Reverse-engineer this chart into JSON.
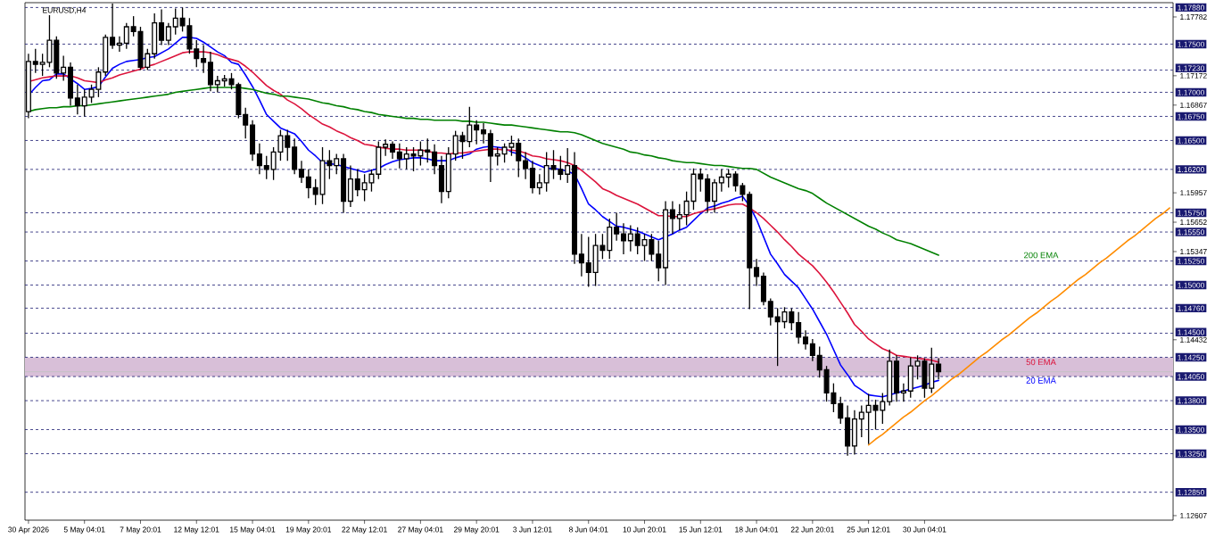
{
  "chart_data": {
    "type": "candlestick",
    "title": "EURUSD,H4",
    "color": "#000000",
    "categories": [
      "30 Apr 2026",
      null,
      null,
      null,
      null,
      null,
      null,
      null,
      "5 May 04:01",
      null,
      null,
      null,
      null,
      null,
      null,
      null,
      "7 May 20:01",
      null,
      null,
      null,
      null,
      null,
      null,
      null,
      "12 May 12:01",
      null,
      null,
      null,
      null,
      null,
      null,
      null,
      "15 May 04:01",
      null,
      null,
      null,
      null,
      null,
      null,
      null,
      "19 May 20:01",
      null,
      null,
      null,
      null,
      null,
      null,
      null,
      "22 May 12:01",
      null,
      null,
      null,
      null,
      null,
      null,
      null,
      "27 May 04:01",
      null,
      null,
      null,
      null,
      null,
      null,
      null,
      "29 May 20:01",
      null,
      null,
      null,
      null,
      null,
      null,
      null,
      "3 Jun 12:01",
      null,
      null,
      null,
      null,
      null,
      null,
      null,
      "8 Jun 04:01",
      null,
      null,
      null,
      null,
      null,
      null,
      null,
      "10 Jun 20:01",
      null,
      null,
      null,
      null,
      null,
      null,
      null,
      "15 Jun 12:01",
      null,
      null,
      null,
      null,
      null,
      null,
      null,
      "18 Jun 04:01",
      null,
      null,
      null,
      null,
      null,
      null,
      null,
      "22 Jun 20:01",
      null,
      null,
      null,
      null,
      null,
      null,
      null,
      "25 Jun 12:01",
      null,
      null,
      null,
      null,
      null,
      null,
      null,
      "30 Jun 04:01",
      null,
      null,
      null,
      null,
      null,
      null,
      null,
      null,
      null,
      null,
      null,
      null,
      null,
      null,
      null,
      null,
      null,
      null,
      null,
      null,
      null,
      null,
      null,
      null,
      null,
      null,
      null,
      null,
      null,
      null,
      null,
      null,
      null,
      null,
      null
    ],
    "ohlc": [
      [
        1.168,
        1.174,
        1.1673,
        1.1732
      ],
      [
        1.1732,
        1.1745,
        1.172,
        1.1729
      ],
      [
        1.1729,
        1.174,
        1.1717,
        1.1731
      ],
      [
        1.1731,
        1.178,
        1.1726,
        1.1754
      ],
      [
        1.1754,
        1.1758,
        1.1714,
        1.172
      ],
      [
        1.172,
        1.1738,
        1.1712,
        1.1726
      ],
      [
        1.1726,
        1.1731,
        1.1686,
        1.1694
      ],
      [
        1.1694,
        1.1708,
        1.1677,
        1.1686
      ],
      [
        1.1686,
        1.1703,
        1.1675,
        1.1695
      ],
      [
        1.1695,
        1.1708,
        1.1689,
        1.1703
      ],
      [
        1.1703,
        1.1726,
        1.1695,
        1.1721
      ],
      [
        1.1721,
        1.176,
        1.1717,
        1.1757
      ],
      [
        1.1757,
        1.1792,
        1.1745,
        1.1749
      ],
      [
        1.1749,
        1.1758,
        1.1742,
        1.1751
      ],
      [
        1.1751,
        1.1772,
        1.1745,
        1.1768
      ],
      [
        1.1768,
        1.1779,
        1.1758,
        1.1763
      ],
      [
        1.1763,
        1.1768,
        1.1723,
        1.1726
      ],
      [
        1.1726,
        1.1745,
        1.1723,
        1.174
      ],
      [
        1.174,
        1.1782,
        1.1735,
        1.1772
      ],
      [
        1.1772,
        1.1786,
        1.1749,
        1.1754
      ],
      [
        1.1754,
        1.1772,
        1.1749,
        1.1768
      ],
      [
        1.1768,
        1.1787,
        1.176,
        1.1777
      ],
      [
        1.1777,
        1.1788,
        1.1763,
        1.1769
      ],
      [
        1.1769,
        1.1777,
        1.174,
        1.1745
      ],
      [
        1.1745,
        1.1754,
        1.1726,
        1.1735
      ],
      [
        1.1735,
        1.1749,
        1.172,
        1.1731
      ],
      [
        1.1731,
        1.1742,
        1.1701,
        1.1708
      ],
      [
        1.1708,
        1.1717,
        1.17,
        1.1712
      ],
      [
        1.1712,
        1.1718,
        1.1706,
        1.1714
      ],
      [
        1.1714,
        1.172,
        1.1703,
        1.1708
      ],
      [
        1.1708,
        1.171,
        1.1673,
        1.1677
      ],
      [
        1.1677,
        1.1684,
        1.1652,
        1.1666
      ],
      [
        1.1666,
        1.1671,
        1.1629,
        1.1636
      ],
      [
        1.1636,
        1.1647,
        1.1615,
        1.1624
      ],
      [
        1.1624,
        1.1634,
        1.161,
        1.162
      ],
      [
        1.162,
        1.1643,
        1.1609,
        1.1638
      ],
      [
        1.1638,
        1.1661,
        1.1629,
        1.1655
      ],
      [
        1.1655,
        1.1661,
        1.1629,
        1.1643
      ],
      [
        1.1643,
        1.1652,
        1.1615,
        1.162
      ],
      [
        1.162,
        1.1629,
        1.1606,
        1.1612
      ],
      [
        1.1612,
        1.162,
        1.159,
        1.1601
      ],
      [
        1.1601,
        1.161,
        1.1583,
        1.1594
      ],
      [
        1.1594,
        1.1643,
        1.1584,
        1.1629
      ],
      [
        1.1629,
        1.164,
        1.161,
        1.1624
      ],
      [
        1.1624,
        1.1636,
        1.1615,
        1.1631
      ],
      [
        1.1631,
        1.1636,
        1.1575,
        1.1587
      ],
      [
        1.1587,
        1.1624,
        1.1581,
        1.161
      ],
      [
        1.161,
        1.162,
        1.1592,
        1.1599
      ],
      [
        1.1599,
        1.1615,
        1.1587,
        1.1606
      ],
      [
        1.1606,
        1.162,
        1.1597,
        1.1615
      ],
      [
        1.1615,
        1.1649,
        1.161,
        1.1643
      ],
      [
        1.1643,
        1.1651,
        1.1634,
        1.1646
      ],
      [
        1.1646,
        1.1649,
        1.1631,
        1.1638
      ],
      [
        1.1638,
        1.1647,
        1.1621,
        1.1631
      ],
      [
        1.1631,
        1.1643,
        1.162,
        1.1636
      ],
      [
        1.1636,
        1.1643,
        1.1618,
        1.1634
      ],
      [
        1.1634,
        1.1649,
        1.1624,
        1.164
      ],
      [
        1.164,
        1.1652,
        1.1627,
        1.1638
      ],
      [
        1.1638,
        1.1646,
        1.1615,
        1.1624
      ],
      [
        1.1624,
        1.1634,
        1.1585,
        1.1597
      ],
      [
        1.1597,
        1.1643,
        1.159,
        1.1636
      ],
      [
        1.1636,
        1.166,
        1.1629,
        1.1655
      ],
      [
        1.1655,
        1.1659,
        1.1631,
        1.1649
      ],
      [
        1.1649,
        1.1685,
        1.1643,
        1.1666
      ],
      [
        1.1666,
        1.1671,
        1.1646,
        1.1661
      ],
      [
        1.1661,
        1.1668,
        1.1647,
        1.1657
      ],
      [
        1.1657,
        1.1661,
        1.1607,
        1.1634
      ],
      [
        1.1634,
        1.1643,
        1.1624,
        1.1636
      ],
      [
        1.1636,
        1.1647,
        1.1627,
        1.1643
      ],
      [
        1.1643,
        1.1655,
        1.1634,
        1.1647
      ],
      [
        1.1647,
        1.1652,
        1.1612,
        1.1629
      ],
      [
        1.1629,
        1.1638,
        1.161,
        1.1621
      ],
      [
        1.1621,
        1.1629,
        1.1595,
        1.1601
      ],
      [
        1.1601,
        1.1615,
        1.1594,
        1.1606
      ],
      [
        1.1606,
        1.1638,
        1.1597,
        1.1624
      ],
      [
        1.1624,
        1.164,
        1.161,
        1.162
      ],
      [
        1.162,
        1.1634,
        1.1609,
        1.1615
      ],
      [
        1.1615,
        1.1642,
        1.1606,
        1.1624
      ],
      [
        1.1624,
        1.1638,
        1.1522,
        1.1532
      ],
      [
        1.1532,
        1.1553,
        1.1509,
        1.1523
      ],
      [
        1.1523,
        1.155,
        1.1498,
        1.1513
      ],
      [
        1.1513,
        1.1553,
        1.1499,
        1.1541
      ],
      [
        1.1541,
        1.1553,
        1.1527,
        1.1536
      ],
      [
        1.1536,
        1.1569,
        1.1527,
        1.156
      ],
      [
        1.156,
        1.1575,
        1.1546,
        1.1553
      ],
      [
        1.1553,
        1.1564,
        1.1532,
        1.1546
      ],
      [
        1.1546,
        1.1562,
        1.1535,
        1.1553
      ],
      [
        1.1553,
        1.156,
        1.1532,
        1.1541
      ],
      [
        1.1541,
        1.1553,
        1.1525,
        1.1547
      ],
      [
        1.1547,
        1.1553,
        1.1525,
        1.1532
      ],
      [
        1.1532,
        1.1546,
        1.1504,
        1.1518
      ],
      [
        1.1518,
        1.1587,
        1.15,
        1.1578
      ],
      [
        1.1578,
        1.1587,
        1.1553,
        1.1569
      ],
      [
        1.1569,
        1.1584,
        1.1557,
        1.1573
      ],
      [
        1.1573,
        1.1597,
        1.1562,
        1.1587
      ],
      [
        1.1587,
        1.1621,
        1.1578,
        1.1615
      ],
      [
        1.1615,
        1.1621,
        1.1597,
        1.161
      ],
      [
        1.161,
        1.1615,
        1.1575,
        1.1587
      ],
      [
        1.1587,
        1.161,
        1.1575,
        1.1606
      ],
      [
        1.1606,
        1.162,
        1.1597,
        1.1612
      ],
      [
        1.1612,
        1.162,
        1.1601,
        1.1615
      ],
      [
        1.1615,
        1.1618,
        1.1597,
        1.1603
      ],
      [
        1.1603,
        1.1606,
        1.1587,
        1.1594
      ],
      [
        1.1594,
        1.1597,
        1.1475,
        1.1518
      ],
      [
        1.1518,
        1.1527,
        1.1499,
        1.1509
      ],
      [
        1.1509,
        1.1513,
        1.1479,
        1.1483
      ],
      [
        1.1483,
        1.1486,
        1.1458,
        1.1467
      ],
      [
        1.1467,
        1.1476,
        1.1416,
        1.1462
      ],
      [
        1.1462,
        1.1477,
        1.1455,
        1.1472
      ],
      [
        1.1472,
        1.1476,
        1.1453,
        1.1461
      ],
      [
        1.1461,
        1.1472,
        1.1439,
        1.1446
      ],
      [
        1.1446,
        1.1453,
        1.1433,
        1.1439
      ],
      [
        1.1439,
        1.1444,
        1.1421,
        1.1427
      ],
      [
        1.1427,
        1.1436,
        1.1404,
        1.1412
      ],
      [
        1.1412,
        1.1416,
        1.1379,
        1.1388
      ],
      [
        1.1388,
        1.1398,
        1.1368,
        1.1377
      ],
      [
        1.1377,
        1.1384,
        1.1356,
        1.1362
      ],
      [
        1.1362,
        1.1375,
        1.1323,
        1.1333
      ],
      [
        1.1333,
        1.137,
        1.1324,
        1.1361
      ],
      [
        1.1361,
        1.1375,
        1.1342,
        1.1368
      ],
      [
        1.1368,
        1.1387,
        1.1335,
        1.1375
      ],
      [
        1.1375,
        1.1381,
        1.135,
        1.137
      ],
      [
        1.137,
        1.1388,
        1.1356,
        1.1379
      ],
      [
        1.1379,
        1.1433,
        1.1375,
        1.1421
      ],
      [
        1.1421,
        1.1427,
        1.1379,
        1.1388
      ],
      [
        1.1388,
        1.1398,
        1.1379,
        1.139
      ],
      [
        1.139,
        1.1425,
        1.1383,
        1.1416
      ],
      [
        1.1416,
        1.1427,
        1.1402,
        1.1421
      ],
      [
        1.1421,
        1.1424,
        1.1383,
        1.1393
      ],
      [
        1.1393,
        1.1435,
        1.1388,
        1.1418
      ],
      [
        1.1418,
        1.1424,
        1.1402,
        1.141
      ],
      null,
      null,
      null,
      null,
      null,
      null,
      null,
      null,
      null,
      null,
      null,
      null,
      null,
      null,
      null,
      null,
      null,
      null,
      null,
      null,
      null,
      null,
      null,
      null,
      null,
      null,
      null,
      null,
      null,
      null,
      null,
      null,
      null
    ],
    "ylim": [
      1.1256,
      1.1793
    ],
    "yticks": [
      1.17782,
      1.17172,
      1.16867,
      1.15957,
      1.15652,
      1.15347,
      1.14432,
      1.12607
    ],
    "ref_lines": [
      {
        "axis": "y",
        "value": 1.1788,
        "label": "1.17880",
        "color": "#191970",
        "line_style": "dashed"
      },
      {
        "axis": "y",
        "value": 1.175,
        "label": "1.17500",
        "color": "#191970",
        "line_style": "dashed"
      },
      {
        "axis": "y",
        "value": 1.1723,
        "label": "1.17230",
        "color": "#191970",
        "line_style": "dashed"
      },
      {
        "axis": "y",
        "value": 1.17,
        "label": "1.17000",
        "color": "#191970",
        "line_style": "dashed"
      },
      {
        "axis": "y",
        "value": 1.1675,
        "label": "1.16750",
        "color": "#191970",
        "line_style": "dashed"
      },
      {
        "axis": "y",
        "value": 1.165,
        "label": "1.16500",
        "color": "#191970",
        "line_style": "dashed"
      },
      {
        "axis": "y",
        "value": 1.162,
        "label": "1.16200",
        "color": "#191970",
        "line_style": "dashed"
      },
      {
        "axis": "y",
        "value": 1.1575,
        "label": "1.15750",
        "color": "#191970",
        "line_style": "dashed"
      },
      {
        "axis": "y",
        "value": 1.1555,
        "label": "1.15550",
        "color": "#191970",
        "line_style": "dashed"
      },
      {
        "axis": "y",
        "value": 1.1525,
        "label": "1.15250",
        "color": "#191970",
        "line_style": "dashed"
      },
      {
        "axis": "y",
        "value": 1.15,
        "label": "1.15000",
        "color": "#191970",
        "line_style": "dashed"
      },
      {
        "axis": "y",
        "value": 1.1476,
        "label": "1.14760",
        "color": "#191970",
        "line_style": "dashed"
      },
      {
        "axis": "y",
        "value": 1.145,
        "label": "1.14500",
        "color": "#191970",
        "line_style": "dashed"
      },
      {
        "axis": "y",
        "value": 1.1425,
        "label": "1.14250",
        "color": "#191970",
        "line_style": "dashed"
      },
      {
        "axis": "y",
        "value": 1.1405,
        "label": "1.14050",
        "color": "#191970",
        "line_style": "dashed"
      },
      {
        "axis": "y",
        "value": 1.138,
        "label": "1.13800",
        "color": "#191970",
        "line_style": "dashed"
      },
      {
        "axis": "y",
        "value": 1.135,
        "label": "1.13500",
        "color": "#191970",
        "line_style": "dashed"
      },
      {
        "axis": "y",
        "value": 1.1325,
        "label": "1.13250",
        "color": "#191970",
        "line_style": "dashed"
      },
      {
        "axis": "y",
        "value": 1.1285,
        "label": "1.12850",
        "color": "#191970",
        "line_style": "dashed"
      },
      {
        "axis": "y",
        "value": 1.141,
        "color": "#c0c0c0",
        "line_style": "solid"
      }
    ],
    "bands": [
      {
        "axis": "y",
        "from": 1.1405,
        "to": 1.1425,
        "color": "#d8bfd8"
      }
    ],
    "series": [
      {
        "name": "20 EMA",
        "type": "line",
        "color": "#0000ff",
        "values": [
          1.1697,
          1.1705,
          1.1712,
          1.1713,
          1.1719,
          1.1719,
          1.1714,
          1.1709,
          1.1703,
          1.1704,
          1.1706,
          1.1716,
          1.1725,
          1.1729,
          1.1732,
          1.1733,
          1.1734,
          1.1736,
          1.1737,
          1.1741,
          1.1745,
          1.1751,
          1.1757,
          1.1757,
          1.1756,
          1.1752,
          1.1747,
          1.1742,
          1.1738,
          1.1731,
          1.1729,
          1.1718,
          1.1706,
          1.1692,
          1.1677,
          1.167,
          1.1663,
          1.166,
          1.1657,
          1.1649,
          1.164,
          1.1634,
          1.1627,
          1.1626,
          1.1625,
          1.1623,
          1.1621,
          1.1619,
          1.1617,
          1.1619,
          1.1621,
          1.1625,
          1.1628,
          1.163,
          1.1631,
          1.1632,
          1.1632,
          1.1631,
          1.1629,
          1.1629,
          1.1629,
          1.1632,
          1.1634,
          1.1636,
          1.1641,
          1.1643,
          1.1644,
          1.1643,
          1.1642,
          1.1638,
          1.1636,
          1.1632,
          1.1627,
          1.1624,
          1.1621,
          1.1621,
          1.162,
          1.1618,
          1.1615,
          1.16,
          1.1584,
          1.1578,
          1.1571,
          1.1566,
          1.1561,
          1.156,
          1.1558,
          1.1556,
          1.1553,
          1.155,
          1.1547,
          1.155,
          1.1553,
          1.1557,
          1.156,
          1.1567,
          1.1574,
          1.158,
          1.1582,
          1.1585,
          1.1587,
          1.159,
          1.1592,
          1.1582,
          1.1568,
          1.155,
          1.1532,
          1.1522,
          1.1511,
          1.1504,
          1.1497,
          1.1486,
          1.1475,
          1.1462,
          1.1449,
          1.1433,
          1.1417,
          1.1407,
          1.1396,
          1.1391,
          1.1386,
          1.1385,
          1.1384,
          1.1386,
          1.1388,
          1.139,
          1.1392,
          1.1394,
          1.1396,
          1.1399,
          1.1401,
          null,
          null,
          null,
          null,
          null,
          null,
          null,
          null,
          null,
          null,
          null,
          null,
          null,
          null,
          null,
          null,
          null,
          null,
          null,
          null,
          null,
          null,
          null,
          null,
          null,
          null,
          null,
          null,
          null,
          null,
          null,
          null,
          null
        ]
      },
      {
        "name": "50 EMA",
        "type": "line",
        "color": "#dc143c",
        "values": [
          1.1711,
          1.1713,
          1.1715,
          1.1716,
          1.1717,
          1.1717,
          1.1717,
          1.1715,
          1.1712,
          1.1711,
          1.171,
          1.1713,
          1.1715,
          1.1718,
          1.172,
          1.1722,
          1.1724,
          1.1727,
          1.1729,
          1.1732,
          1.1735,
          1.1738,
          1.1741,
          1.1742,
          1.1742,
          1.1742,
          1.1741,
          1.1739,
          1.1736,
          1.1734,
          1.1732,
          1.1727,
          1.1721,
          1.1714,
          1.1707,
          1.1702,
          1.1698,
          1.1692,
          1.1688,
          1.1683,
          1.1677,
          1.1672,
          1.1667,
          1.1664,
          1.166,
          1.1657,
          1.1653,
          1.165,
          1.1646,
          1.1645,
          1.1643,
          1.1642,
          1.1641,
          1.1641,
          1.164,
          1.164,
          1.164,
          1.1639,
          1.1637,
          1.1637,
          1.1636,
          1.1637,
          1.1637,
          1.1638,
          1.1639,
          1.164,
          1.1641,
          1.1641,
          1.164,
          1.164,
          1.1639,
          1.1637,
          1.1634,
          1.1633,
          1.1631,
          1.163,
          1.1629,
          1.1627,
          1.1624,
          1.1619,
          1.1613,
          1.1607,
          1.16,
          1.1597,
          1.1593,
          1.159,
          1.1587,
          1.1584,
          1.158,
          1.1576,
          1.1572,
          1.1572,
          1.1571,
          1.1571,
          1.1571,
          1.1574,
          1.1576,
          1.1578,
          1.1579,
          1.1581,
          1.1583,
          1.1584,
          1.1584,
          1.158,
          1.1575,
          1.1569,
          1.1562,
          1.1555,
          1.1547,
          1.154,
          1.1532,
          1.1526,
          1.152,
          1.1512,
          1.1503,
          1.1493,
          1.1482,
          1.1471,
          1.1459,
          1.1452,
          1.1444,
          1.1439,
          1.1434,
          1.1431,
          1.1427,
          1.1426,
          1.1425,
          1.1424,
          1.1423,
          1.1422,
          1.142,
          null,
          null,
          null,
          null,
          null,
          null,
          null,
          null,
          null,
          null,
          null,
          null,
          null,
          null,
          null,
          null,
          null,
          null,
          null,
          null,
          null,
          null,
          null,
          null,
          null,
          null,
          null,
          null,
          null,
          null,
          null,
          null,
          null
        ]
      },
      {
        "name": "200 EMA",
        "type": "line",
        "color": "#008000",
        "values": [
          1.168,
          1.1682,
          1.1683,
          1.1684,
          1.1684,
          1.1685,
          1.1685,
          1.1686,
          1.1686,
          1.1687,
          1.1688,
          1.1689,
          1.169,
          1.1691,
          1.1692,
          1.1693,
          1.1694,
          1.1695,
          1.1696,
          1.1697,
          1.1698,
          1.17,
          1.1701,
          1.1702,
          1.1703,
          1.1704,
          1.1705,
          1.1705,
          1.1705,
          1.1705,
          1.1705,
          1.1704,
          1.1703,
          1.1701,
          1.1699,
          1.1698,
          1.1696,
          1.1696,
          1.1695,
          1.1694,
          1.1693,
          1.1691,
          1.1689,
          1.1688,
          1.1686,
          1.1685,
          1.1683,
          1.1682,
          1.168,
          1.1679,
          1.1677,
          1.1676,
          1.1675,
          1.1674,
          1.1673,
          1.1673,
          1.1672,
          1.1672,
          1.1671,
          1.1671,
          1.1671,
          1.1671,
          1.167,
          1.167,
          1.1669,
          1.1669,
          1.1668,
          1.1667,
          1.1666,
          1.1666,
          1.1665,
          1.1664,
          1.1663,
          1.1662,
          1.1661,
          1.166,
          1.1659,
          1.1659,
          1.1658,
          1.1656,
          1.1653,
          1.165,
          1.1647,
          1.1645,
          1.1643,
          1.1641,
          1.1638,
          1.1637,
          1.1635,
          1.1634,
          1.1632,
          1.1631,
          1.1629,
          1.1628,
          1.1627,
          1.1627,
          1.1626,
          1.1625,
          1.1624,
          1.1624,
          1.1623,
          1.1622,
          1.1621,
          1.1621,
          1.162,
          1.1616,
          1.1612,
          1.1609,
          1.1606,
          1.1603,
          1.16,
          1.1598,
          1.1595,
          1.159,
          1.1585,
          1.1581,
          1.1577,
          1.1573,
          1.1569,
          1.1565,
          1.1561,
          1.1558,
          1.1554,
          1.1551,
          1.1547,
          1.1545,
          1.1543,
          1.154,
          1.1537,
          1.1534,
          1.1531,
          null,
          null,
          null,
          null,
          null,
          null,
          null,
          null,
          null,
          null,
          null,
          null,
          null,
          null,
          null,
          null,
          null,
          null,
          null,
          null,
          null,
          null,
          null,
          null,
          null,
          null,
          null,
          null,
          null,
          null,
          null,
          null,
          null
        ]
      },
      {
        "type": "line",
        "color": "#ff8c00",
        "values": [
          null,
          null,
          null,
          null,
          null,
          null,
          null,
          null,
          null,
          null,
          null,
          null,
          null,
          null,
          null,
          null,
          null,
          null,
          null,
          null,
          null,
          null,
          null,
          null,
          null,
          null,
          null,
          null,
          null,
          null,
          null,
          null,
          null,
          null,
          null,
          null,
          null,
          null,
          null,
          null,
          null,
          null,
          null,
          null,
          null,
          null,
          null,
          null,
          null,
          null,
          null,
          null,
          null,
          null,
          null,
          null,
          null,
          null,
          null,
          null,
          null,
          null,
          null,
          null,
          null,
          null,
          null,
          null,
          null,
          null,
          null,
          null,
          null,
          null,
          null,
          null,
          null,
          null,
          null,
          null,
          null,
          null,
          null,
          null,
          null,
          null,
          null,
          null,
          null,
          null,
          null,
          null,
          null,
          null,
          null,
          null,
          null,
          null,
          null,
          null,
          null,
          null,
          null,
          null,
          null,
          null,
          null,
          null,
          null,
          null,
          null,
          null,
          null,
          null,
          null,
          null,
          null,
          null,
          null,
          null,
          1.1334,
          1.134,
          1.1345,
          1.1351,
          1.1357,
          1.1363,
          1.1368,
          1.1374,
          1.138,
          1.1385,
          1.1391,
          1.1397,
          1.1403,
          1.1408,
          1.1414,
          1.142,
          1.1426,
          1.1431,
          1.1437,
          1.1443,
          1.1448,
          1.1454,
          1.146,
          1.1466,
          1.1471,
          1.1477,
          1.1483,
          1.1488,
          1.1494,
          1.15,
          1.1506,
          1.1511,
          1.1517,
          1.1523,
          1.1528,
          1.1534,
          1.154,
          1.1546,
          1.1551,
          1.1557,
          1.1563,
          1.1569,
          1.1574,
          1.158
        ]
      }
    ]
  }
}
